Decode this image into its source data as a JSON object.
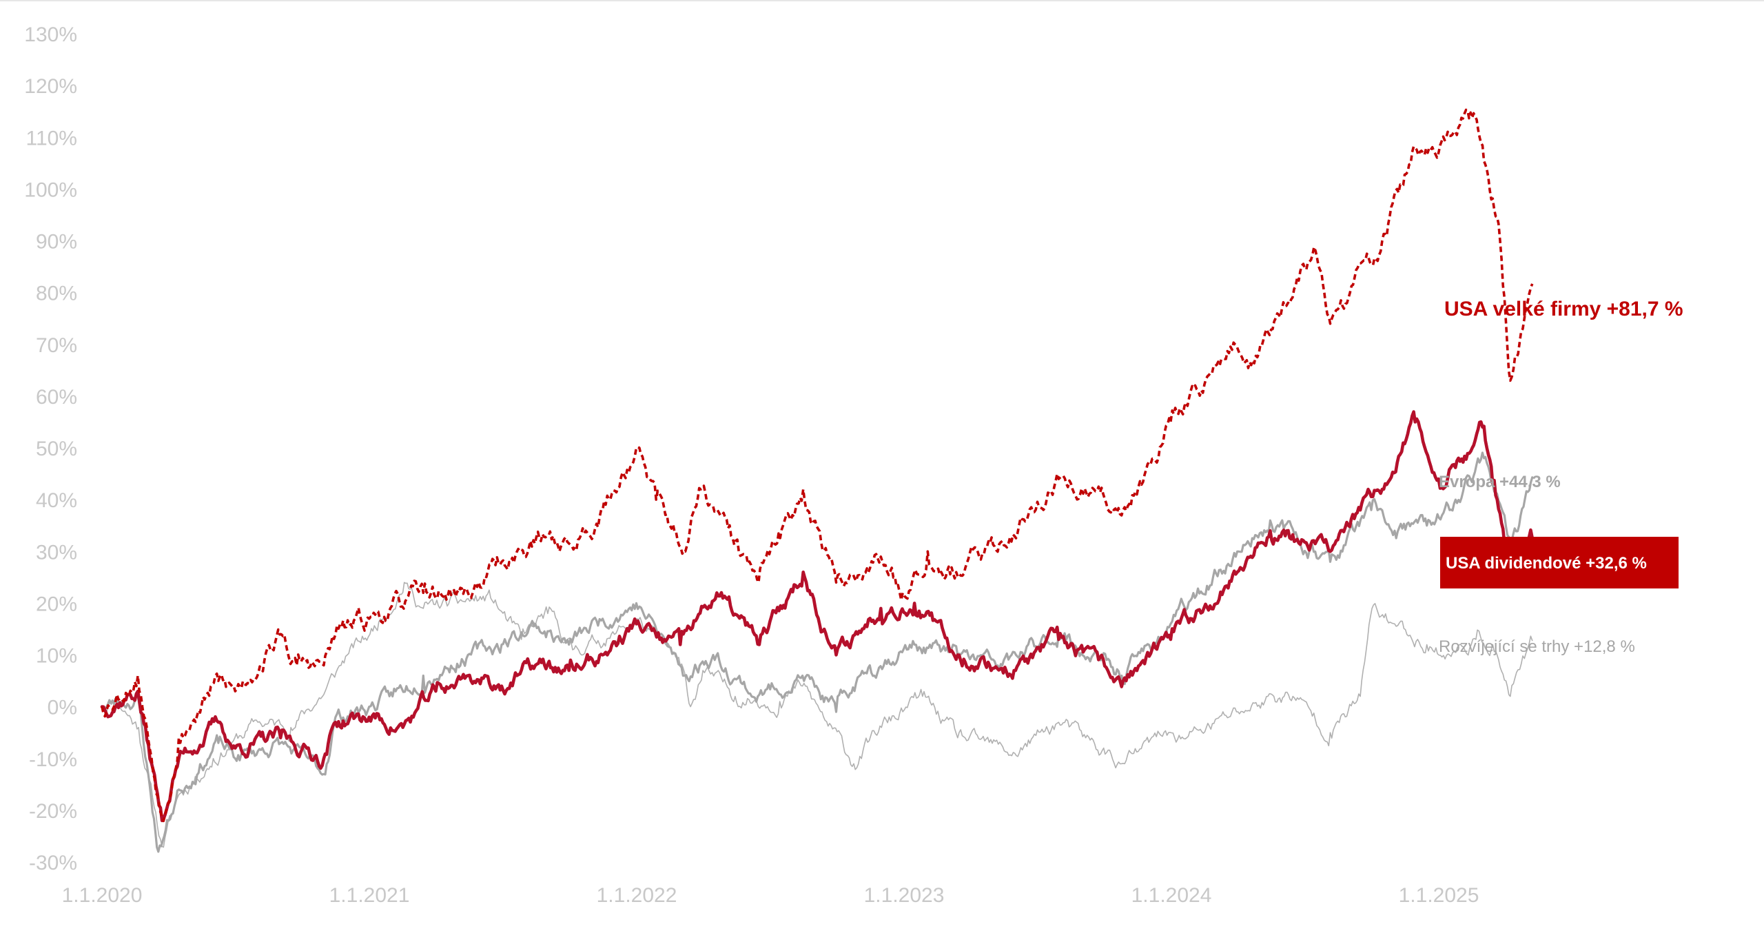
{
  "chart_data": {
    "type": "line",
    "title": "",
    "xlabel": "",
    "ylabel": "",
    "x_range": [
      "2020-01-01",
      "2025-05-08"
    ],
    "ylim": [
      -30,
      130
    ],
    "y_ticks": [
      "130%",
      "120%",
      "110%",
      "100%",
      "90%",
      "80%",
      "70%",
      "60%",
      "50%",
      "40%",
      "30%",
      "20%",
      "10%",
      "0%",
      "-10%",
      "-20%",
      "-30%"
    ],
    "x_ticks": [
      "1.1.2020",
      "1.1.2021",
      "1.1.2022",
      "1.1.2023",
      "1.1.2024",
      "1.1.2025"
    ],
    "grid": false,
    "legend": "none (direct labels at line ends)",
    "series": [
      {
        "key": "em",
        "label": "Rozvíjející se trhy +12,8 %",
        "color": "#b0b0b0",
        "style": "solid-thin",
        "points": [
          [
            "2020-01-01",
            0
          ],
          [
            "2020-01-20",
            2
          ],
          [
            "2020-02-20",
            -4
          ],
          [
            "2020-03-23",
            -27
          ],
          [
            "2020-04-15",
            -17
          ],
          [
            "2020-06-01",
            -10
          ],
          [
            "2020-08-01",
            -3
          ],
          [
            "2020-09-15",
            -4
          ],
          [
            "2020-11-01",
            3
          ],
          [
            "2020-12-01",
            10
          ],
          [
            "2021-01-01",
            14
          ],
          [
            "2021-02-17",
            24
          ],
          [
            "2021-03-15",
            19
          ],
          [
            "2021-05-01",
            20
          ],
          [
            "2021-06-15",
            21
          ],
          [
            "2021-07-27",
            13
          ],
          [
            "2021-09-01",
            18
          ],
          [
            "2021-10-05",
            11
          ],
          [
            "2021-12-01",
            14
          ],
          [
            "2022-01-01",
            17
          ],
          [
            "2022-03-01",
            8
          ],
          [
            "2022-03-15",
            0
          ],
          [
            "2022-04-01",
            7
          ],
          [
            "2022-05-15",
            2
          ],
          [
            "2022-07-15",
            1
          ],
          [
            "2022-08-15",
            4
          ],
          [
            "2022-10-24",
            -11
          ],
          [
            "2022-12-01",
            -4
          ],
          [
            "2023-01-26",
            2
          ],
          [
            "2023-03-15",
            -6
          ],
          [
            "2023-06-01",
            -9
          ],
          [
            "2023-07-31",
            -3
          ],
          [
            "2023-10-25",
            -11
          ],
          [
            "2023-12-28",
            -5
          ],
          [
            "2024-01-22",
            -6
          ],
          [
            "2024-04-01",
            -1
          ],
          [
            "2024-05-20",
            2
          ],
          [
            "2024-06-15",
            2
          ],
          [
            "2024-08-05",
            -5
          ],
          [
            "2024-09-15",
            2
          ],
          [
            "2024-10-01",
            19
          ],
          [
            "2024-11-01",
            16
          ],
          [
            "2024-12-15",
            12
          ],
          [
            "2025-01-15",
            10
          ],
          [
            "2025-02-20",
            13
          ],
          [
            "2025-03-15",
            12
          ],
          [
            "2025-04-08",
            2
          ],
          [
            "2025-05-08",
            12.8
          ]
        ]
      },
      {
        "key": "europe",
        "label": "Evropa +44,3 %",
        "color": "#a6a6a6",
        "style": "solid",
        "points": [
          [
            "2020-01-01",
            0
          ],
          [
            "2020-02-19",
            2
          ],
          [
            "2020-03-18",
            -28
          ],
          [
            "2020-04-15",
            -16
          ],
          [
            "2020-06-08",
            -7
          ],
          [
            "2020-07-01",
            -10
          ],
          [
            "2020-09-01",
            -7
          ],
          [
            "2020-10-30",
            -13
          ],
          [
            "2020-11-15",
            -2
          ],
          [
            "2020-12-31",
            0
          ],
          [
            "2021-02-01",
            2
          ],
          [
            "2021-03-15",
            6
          ],
          [
            "2021-05-15",
            10
          ],
          [
            "2021-06-30",
            12
          ],
          [
            "2021-08-15",
            16
          ],
          [
            "2021-09-30",
            12
          ],
          [
            "2021-11-15",
            17
          ],
          [
            "2021-12-31",
            20
          ],
          [
            "2022-02-01",
            14
          ],
          [
            "2022-03-07",
            6
          ],
          [
            "2022-04-15",
            10
          ],
          [
            "2022-06-15",
            2
          ],
          [
            "2022-08-15",
            6
          ],
          [
            "2022-09-30",
            -1
          ],
          [
            "2022-11-15",
            8
          ],
          [
            "2023-01-15",
            12
          ],
          [
            "2023-03-15",
            10
          ],
          [
            "2023-05-15",
            8
          ],
          [
            "2023-07-31",
            14
          ],
          [
            "2023-10-25",
            6
          ],
          [
            "2023-12-31",
            16
          ],
          [
            "2024-03-31",
            30
          ],
          [
            "2024-05-15",
            36
          ],
          [
            "2024-08-05",
            28
          ],
          [
            "2024-09-30",
            38
          ],
          [
            "2024-11-01",
            34
          ],
          [
            "2024-12-15",
            35
          ],
          [
            "2025-01-15",
            38
          ],
          [
            "2025-03-03",
            48
          ],
          [
            "2025-03-15",
            43
          ],
          [
            "2025-04-08",
            30
          ],
          [
            "2025-04-20",
            35
          ],
          [
            "2025-05-08",
            44.3
          ]
        ]
      },
      {
        "key": "us_div",
        "label": "USA dividendové +32,6 %",
        "color": "#b5102b",
        "style": "solid-thick",
        "points": [
          [
            "2020-01-01",
            0
          ],
          [
            "2020-02-19",
            3
          ],
          [
            "2020-03-23",
            -22
          ],
          [
            "2020-04-15",
            -10
          ],
          [
            "2020-06-08",
            -3
          ],
          [
            "2020-07-01",
            -8
          ],
          [
            "2020-09-01",
            -6
          ],
          [
            "2020-10-30",
            -10
          ],
          [
            "2020-11-15",
            -3
          ],
          [
            "2020-12-31",
            -2
          ],
          [
            "2021-02-15",
            -4
          ],
          [
            "2021-04-01",
            3
          ],
          [
            "2021-05-15",
            6
          ],
          [
            "2021-06-30",
            4
          ],
          [
            "2021-08-15",
            8
          ],
          [
            "2021-09-30",
            7
          ],
          [
            "2021-11-15",
            10
          ],
          [
            "2021-12-31",
            16
          ],
          [
            "2022-02-01",
            13
          ],
          [
            "2022-03-01",
            12
          ],
          [
            "2022-04-20",
            22
          ],
          [
            "2022-06-17",
            12
          ],
          [
            "2022-08-16",
            26
          ],
          [
            "2022-09-30",
            10
          ],
          [
            "2022-11-30",
            19
          ],
          [
            "2023-01-15",
            20
          ],
          [
            "2023-03-15",
            10
          ],
          [
            "2023-05-31",
            7
          ],
          [
            "2023-07-31",
            13
          ],
          [
            "2023-10-27",
            5
          ],
          [
            "2023-12-31",
            13
          ],
          [
            "2024-03-31",
            26
          ],
          [
            "2024-05-15",
            34
          ],
          [
            "2024-08-05",
            30
          ],
          [
            "2024-09-15",
            38
          ],
          [
            "2024-10-15",
            42
          ],
          [
            "2024-11-29",
            55
          ],
          [
            "2024-12-31",
            44
          ],
          [
            "2025-02-15",
            50
          ],
          [
            "2025-03-01",
            54
          ],
          [
            "2025-03-15",
            43
          ],
          [
            "2025-04-08",
            25
          ],
          [
            "2025-05-08",
            32.6
          ]
        ]
      },
      {
        "key": "us_large",
        "label": "USA velké firmy +81,7 %",
        "color": "#c00000",
        "style": "dashed",
        "points": [
          [
            "2020-01-01",
            0
          ],
          [
            "2020-02-19",
            6
          ],
          [
            "2020-03-23",
            -21
          ],
          [
            "2020-04-15",
            -6
          ],
          [
            "2020-06-08",
            5
          ],
          [
            "2020-07-01",
            3
          ],
          [
            "2020-09-02",
            14
          ],
          [
            "2020-09-23",
            8
          ],
          [
            "2020-10-30",
            8
          ],
          [
            "2020-11-15",
            14
          ],
          [
            "2020-12-31",
            17
          ],
          [
            "2021-03-15",
            22
          ],
          [
            "2021-05-15",
            22
          ],
          [
            "2021-06-30",
            28
          ],
          [
            "2021-09-02",
            33
          ],
          [
            "2021-10-04",
            31
          ],
          [
            "2021-11-15",
            38
          ],
          [
            "2021-12-31",
            50
          ],
          [
            "2022-01-27",
            40
          ],
          [
            "2022-03-08",
            30
          ],
          [
            "2022-03-29",
            42
          ],
          [
            "2022-05-20",
            30
          ],
          [
            "2022-06-16",
            24
          ],
          [
            "2022-08-16",
            42
          ],
          [
            "2022-09-30",
            24
          ],
          [
            "2022-11-30",
            29
          ],
          [
            "2022-12-30",
            22
          ],
          [
            "2023-02-02",
            30
          ],
          [
            "2023-03-13",
            26
          ],
          [
            "2023-05-15",
            32
          ],
          [
            "2023-07-31",
            44
          ],
          [
            "2023-10-27",
            38
          ],
          [
            "2023-12-31",
            55
          ],
          [
            "2024-03-28",
            70
          ],
          [
            "2024-04-19",
            66
          ],
          [
            "2024-07-16",
            88
          ],
          [
            "2024-08-05",
            74
          ],
          [
            "2024-09-01",
            80
          ],
          [
            "2024-10-15",
            90
          ],
          [
            "2024-11-29",
            108
          ],
          [
            "2024-12-31",
            107
          ],
          [
            "2025-02-19",
            114
          ],
          [
            "2025-03-13",
            98
          ],
          [
            "2025-03-25",
            90
          ],
          [
            "2025-04-08",
            63
          ],
          [
            "2025-04-25",
            73
          ],
          [
            "2025-05-08",
            81.7
          ]
        ]
      }
    ]
  }
}
